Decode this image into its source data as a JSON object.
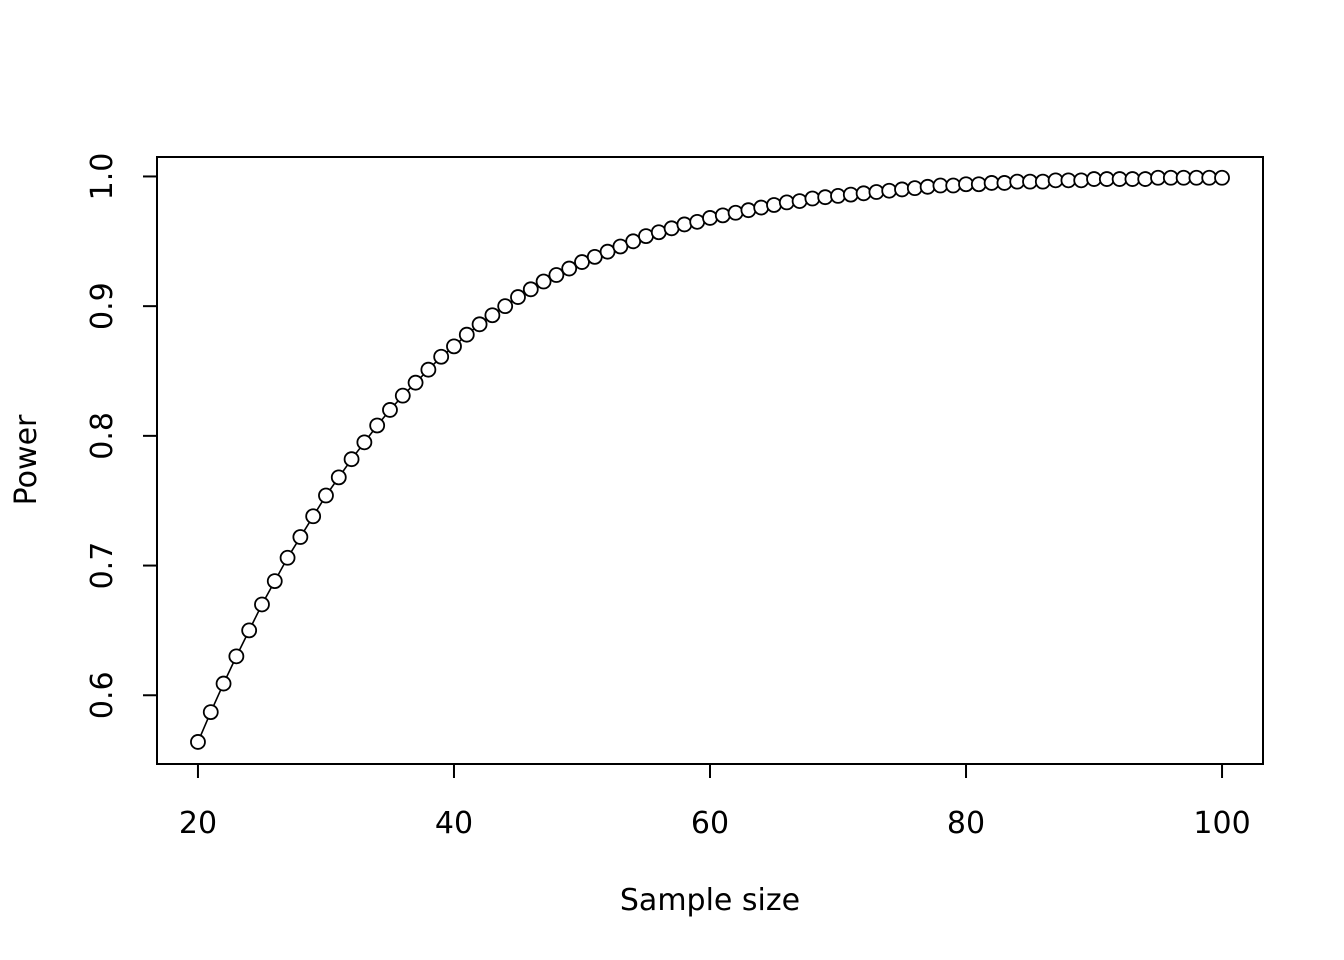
{
  "chart_data": {
    "type": "line",
    "title": "",
    "xlabel": "Sample size",
    "ylabel": "Power",
    "xlim": [
      16.8,
      103.2
    ],
    "ylim": [
      0.547,
      1.015
    ],
    "x_ticks": [
      20,
      40,
      60,
      80,
      100
    ],
    "y_ticks": [
      0.6,
      0.7,
      0.8,
      0.9,
      1.0
    ],
    "x_tick_labels": [
      "20",
      "40",
      "60",
      "80",
      "100"
    ],
    "y_tick_labels": [
      "0.6",
      "0.7",
      "0.8",
      "0.9",
      "1.0"
    ],
    "grid": false,
    "marker": "open-circle",
    "colors": {
      "line": "#000000",
      "background": "#ffffff"
    },
    "series": [
      {
        "x": [
          20,
          21,
          22,
          23,
          24,
          25,
          26,
          27,
          28,
          29,
          30,
          31,
          32,
          33,
          34,
          35,
          36,
          37,
          38,
          39,
          40,
          41,
          42,
          43,
          44,
          45,
          46,
          47,
          48,
          49,
          50,
          51,
          52,
          53,
          54,
          55,
          56,
          57,
          58,
          59,
          60,
          61,
          62,
          63,
          64,
          65,
          66,
          67,
          68,
          69,
          70,
          71,
          72,
          73,
          74,
          75,
          76,
          77,
          78,
          79,
          80,
          81,
          82,
          83,
          84,
          85,
          86,
          87,
          88,
          89,
          90,
          91,
          92,
          93,
          94,
          95,
          96,
          97,
          98,
          99,
          100
        ],
        "values": [
          0.564,
          0.587,
          0.609,
          0.63,
          0.65,
          0.67,
          0.688,
          0.706,
          0.722,
          0.738,
          0.754,
          0.768,
          0.782,
          0.795,
          0.808,
          0.82,
          0.831,
          0.841,
          0.851,
          0.861,
          0.869,
          0.878,
          0.886,
          0.893,
          0.9,
          0.907,
          0.913,
          0.919,
          0.924,
          0.929,
          0.934,
          0.938,
          0.942,
          0.946,
          0.95,
          0.954,
          0.957,
          0.96,
          0.963,
          0.965,
          0.968,
          0.97,
          0.972,
          0.974,
          0.976,
          0.978,
          0.98,
          0.981,
          0.983,
          0.984,
          0.985,
          0.986,
          0.987,
          0.988,
          0.989,
          0.99,
          0.991,
          0.992,
          0.993,
          0.993,
          0.994,
          0.994,
          0.995,
          0.995,
          0.996,
          0.996,
          0.996,
          0.997,
          0.997,
          0.997,
          0.998,
          0.998,
          0.998,
          0.998,
          0.998,
          0.999,
          0.999,
          0.999,
          0.999,
          0.999,
          0.999
        ]
      }
    ]
  }
}
